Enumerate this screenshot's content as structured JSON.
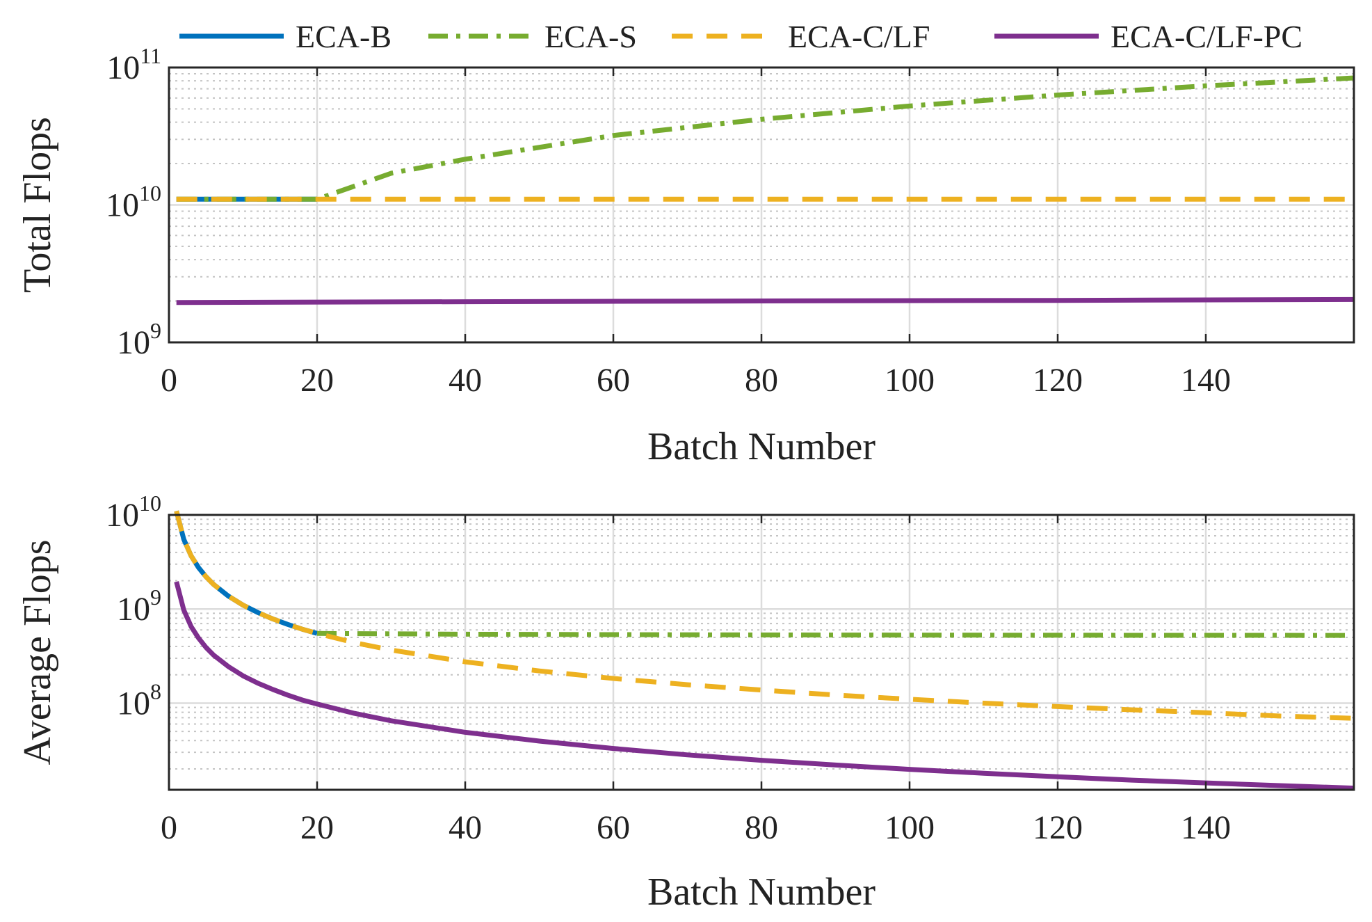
{
  "legend": [
    {
      "name": "ECA-B",
      "color": "#0072BD",
      "dash": "solid"
    },
    {
      "name": "ECA-S",
      "color": "#77AC30",
      "dash": "dashdot"
    },
    {
      "name": "ECA-C/LF",
      "color": "#EDB120",
      "dash": "dashed"
    },
    {
      "name": "ECA-C/LF-PC",
      "color": "#7E2F8E",
      "dash": "solid"
    }
  ],
  "chart_data": [
    {
      "type": "line",
      "yscale": "log",
      "xlabel": "Batch Number",
      "ylabel": "Total Flops",
      "xlim": [
        0,
        160
      ],
      "ylim": [
        1000000000,
        100000000000
      ],
      "xticks": [
        "0",
        "20",
        "40",
        "60",
        "80",
        "100",
        "120",
        "140"
      ],
      "yticks": [
        {
          "base": "10",
          "exp": "9"
        },
        {
          "base": "10",
          "exp": "10"
        },
        {
          "base": "10",
          "exp": "11"
        }
      ],
      "grid": true,
      "series": [
        {
          "name": "ECA-B",
          "x": [
            1,
            20
          ],
          "y": [
            11000000000,
            11000000000
          ]
        },
        {
          "name": "ECA-S",
          "x": [
            1,
            20,
            30,
            40,
            60,
            80,
            100,
            120,
            140,
            160
          ],
          "y": [
            11000000000,
            11000000000,
            17000000000,
            21500000000,
            32000000000,
            42000000000,
            52500000000,
            63000000000,
            73500000000,
            84000000000
          ]
        },
        {
          "name": "ECA-C/LF",
          "x": [
            1,
            160
          ],
          "y": [
            11000000000,
            11000000000
          ]
        },
        {
          "name": "ECA-C/LF-PC",
          "x": [
            1,
            40,
            80,
            120,
            160
          ],
          "y": [
            1950000000,
            1975000000,
            2000000000,
            2020000000,
            2050000000
          ]
        }
      ]
    },
    {
      "type": "line",
      "yscale": "log",
      "xlabel": "Batch Number",
      "ylabel": "Average Flops",
      "xlim": [
        0,
        160
      ],
      "ylim": [
        12000000,
        10000000000
      ],
      "xticks": [
        "0",
        "20",
        "40",
        "60",
        "80",
        "100",
        "120",
        "140"
      ],
      "yticks": [
        {
          "base": "10",
          "exp": "8"
        },
        {
          "base": "10",
          "exp": "9"
        },
        {
          "base": "10",
          "exp": "10"
        }
      ],
      "grid": true,
      "series": [
        {
          "name": "ECA-B",
          "x": [
            1,
            2,
            3,
            4,
            5,
            6,
            8,
            10,
            12,
            14,
            16,
            18,
            20
          ],
          "y": [
            11000000000,
            5500000000,
            3667000000,
            2750000000,
            2200000000,
            1833000000,
            1375000000,
            1100000000,
            917000000,
            786000000,
            688000000,
            611000000,
            550000000
          ]
        },
        {
          "name": "ECA-S",
          "x": [
            20,
            40,
            60,
            80,
            100,
            120,
            140,
            160
          ],
          "y": [
            550000000,
            540000000,
            535000000,
            530000000,
            528000000,
            527000000,
            526000000,
            525000000
          ]
        },
        {
          "name": "ECA-C/LF",
          "x": [
            1,
            2,
            3,
            4,
            5,
            6,
            8,
            10,
            12,
            14,
            16,
            18,
            20,
            25,
            30,
            40,
            50,
            60,
            70,
            80,
            90,
            100,
            110,
            120,
            130,
            140,
            150,
            160
          ],
          "y": [
            11000000000,
            5500000000,
            3667000000,
            2750000000,
            2200000000,
            1833000000,
            1375000000,
            1100000000,
            917000000,
            786000000,
            688000000,
            611000000,
            550000000,
            440000000,
            367000000,
            275000000,
            220000000,
            183000000,
            157000000,
            138000000,
            122000000,
            110000000,
            100000000,
            92000000,
            85000000,
            79000000,
            73000000,
            69000000
          ]
        },
        {
          "name": "ECA-C/LF-PC",
          "x": [
            1,
            2,
            3,
            4,
            5,
            6,
            8,
            10,
            12,
            14,
            16,
            18,
            20,
            25,
            30,
            40,
            50,
            60,
            70,
            80,
            90,
            100,
            110,
            120,
            130,
            140,
            150,
            160
          ],
          "y": [
            1950000000,
            975000000,
            650000000,
            490000000,
            390000000,
            325000000,
            245000000,
            195000000,
            163000000,
            140000000,
            122000000,
            108000000,
            98000000,
            78000000,
            65000000,
            49000000,
            39500000,
            33000000,
            28200000,
            24700000,
            22000000,
            19800000,
            18000000,
            16500000,
            15200000,
            14200000,
            13300000,
            12500000
          ]
        }
      ]
    }
  ]
}
